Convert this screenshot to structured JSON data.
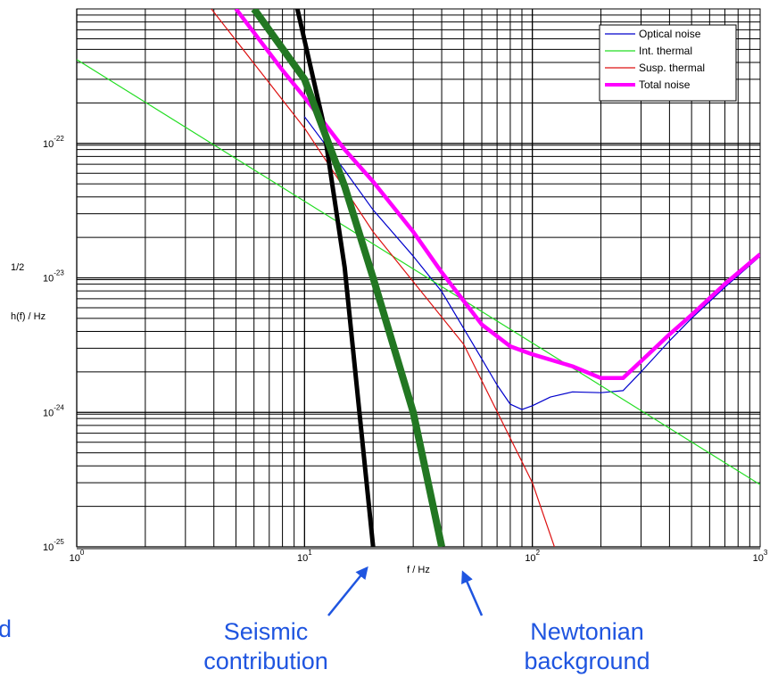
{
  "chart_data": {
    "type": "line",
    "x_scale": "log",
    "y_scale": "log",
    "xlim": [
      1,
      1000
    ],
    "ylim": [
      1e-25,
      1e-21
    ],
    "xlabel": "f / Hz",
    "ylabel_lines": [
      "1/2",
      "h(f) / Hz"
    ],
    "x_ticks": [
      {
        "value": 1,
        "base": "10",
        "exp": "0"
      },
      {
        "value": 10,
        "base": "10",
        "exp": "1"
      },
      {
        "value": 100,
        "base": "10",
        "exp": "2"
      },
      {
        "value": 1000,
        "base": "10",
        "exp": "3"
      }
    ],
    "y_ticks": [
      {
        "value": 1e-25,
        "base": "10",
        "exp": "-25"
      },
      {
        "value": 1e-24,
        "base": "10",
        "exp": "-24"
      },
      {
        "value": 1e-23,
        "base": "10",
        "exp": "-23"
      },
      {
        "value": 1e-22,
        "base": "10",
        "exp": "-22"
      }
    ],
    "grid": true,
    "legend_position": "top-right",
    "series": [
      {
        "name": "Optical noise",
        "color": "#0000cc",
        "width": 1.2,
        "x": [
          10,
          15,
          20,
          30,
          40,
          50,
          60,
          70,
          80,
          90,
          100,
          120,
          150,
          200,
          250,
          300,
          400,
          500,
          700,
          1000
        ],
        "y": [
          1.58e-22,
          6.3e-23,
          3.2e-23,
          1.45e-23,
          7.9e-24,
          4.2e-24,
          2.5e-24,
          1.6e-24,
          1.15e-24,
          1.05e-24,
          1.12e-24,
          1.3e-24,
          1.42e-24,
          1.4e-24,
          1.45e-24,
          2e-24,
          3.4e-24,
          5e-24,
          8.5e-24,
          1.45e-23
        ]
      },
      {
        "name": "Int. thermal",
        "color": "#22dd22",
        "width": 1.2,
        "x": [
          1,
          1000
        ],
        "y": [
          4.2e-22,
          2.9e-25
        ]
      },
      {
        "name": "Susp. thermal",
        "color": "#dd1111",
        "width": 1.2,
        "x": [
          3.9,
          10,
          20,
          50,
          100,
          125
        ],
        "y": [
          1e-21,
          1.3e-22,
          2.2e-23,
          3.2e-24,
          3e-25,
          1e-25
        ]
      },
      {
        "name": "Total noise",
        "color": "#ff00ff",
        "width": 4.5,
        "x": [
          5,
          8,
          10,
          15,
          20,
          30,
          40,
          60,
          80,
          100,
          150,
          200,
          250,
          300,
          400,
          500,
          700,
          1000
        ],
        "y": [
          1e-21,
          3.5e-22,
          2.2e-22,
          9e-23,
          5.2e-23,
          2.2e-23,
          1.1e-23,
          4.5e-24,
          3.1e-24,
          2.7e-24,
          2.2e-24,
          1.8e-24,
          1.8e-24,
          2.4e-24,
          3.8e-24,
          5.3e-24,
          9e-24,
          1.5e-23
        ]
      },
      {
        "color": "#000000",
        "width": 5,
        "x": [
          9.3,
          12,
          15,
          20
        ],
        "y": [
          1e-21,
          1.5e-22,
          1.2e-23,
          1e-25
        ]
      },
      {
        "color": "#227722",
        "width": 8,
        "x": [
          6,
          10,
          15,
          20,
          30,
          40
        ],
        "y": [
          1e-21,
          3e-22,
          4.8e-23,
          1e-23,
          1e-24,
          1e-25
        ]
      }
    ],
    "annotations": [
      {
        "lines": [
          "Seismic",
          "contribution"
        ]
      },
      {
        "lines": [
          "Newtonian",
          "background"
        ]
      }
    ]
  },
  "left_fragment": "d"
}
